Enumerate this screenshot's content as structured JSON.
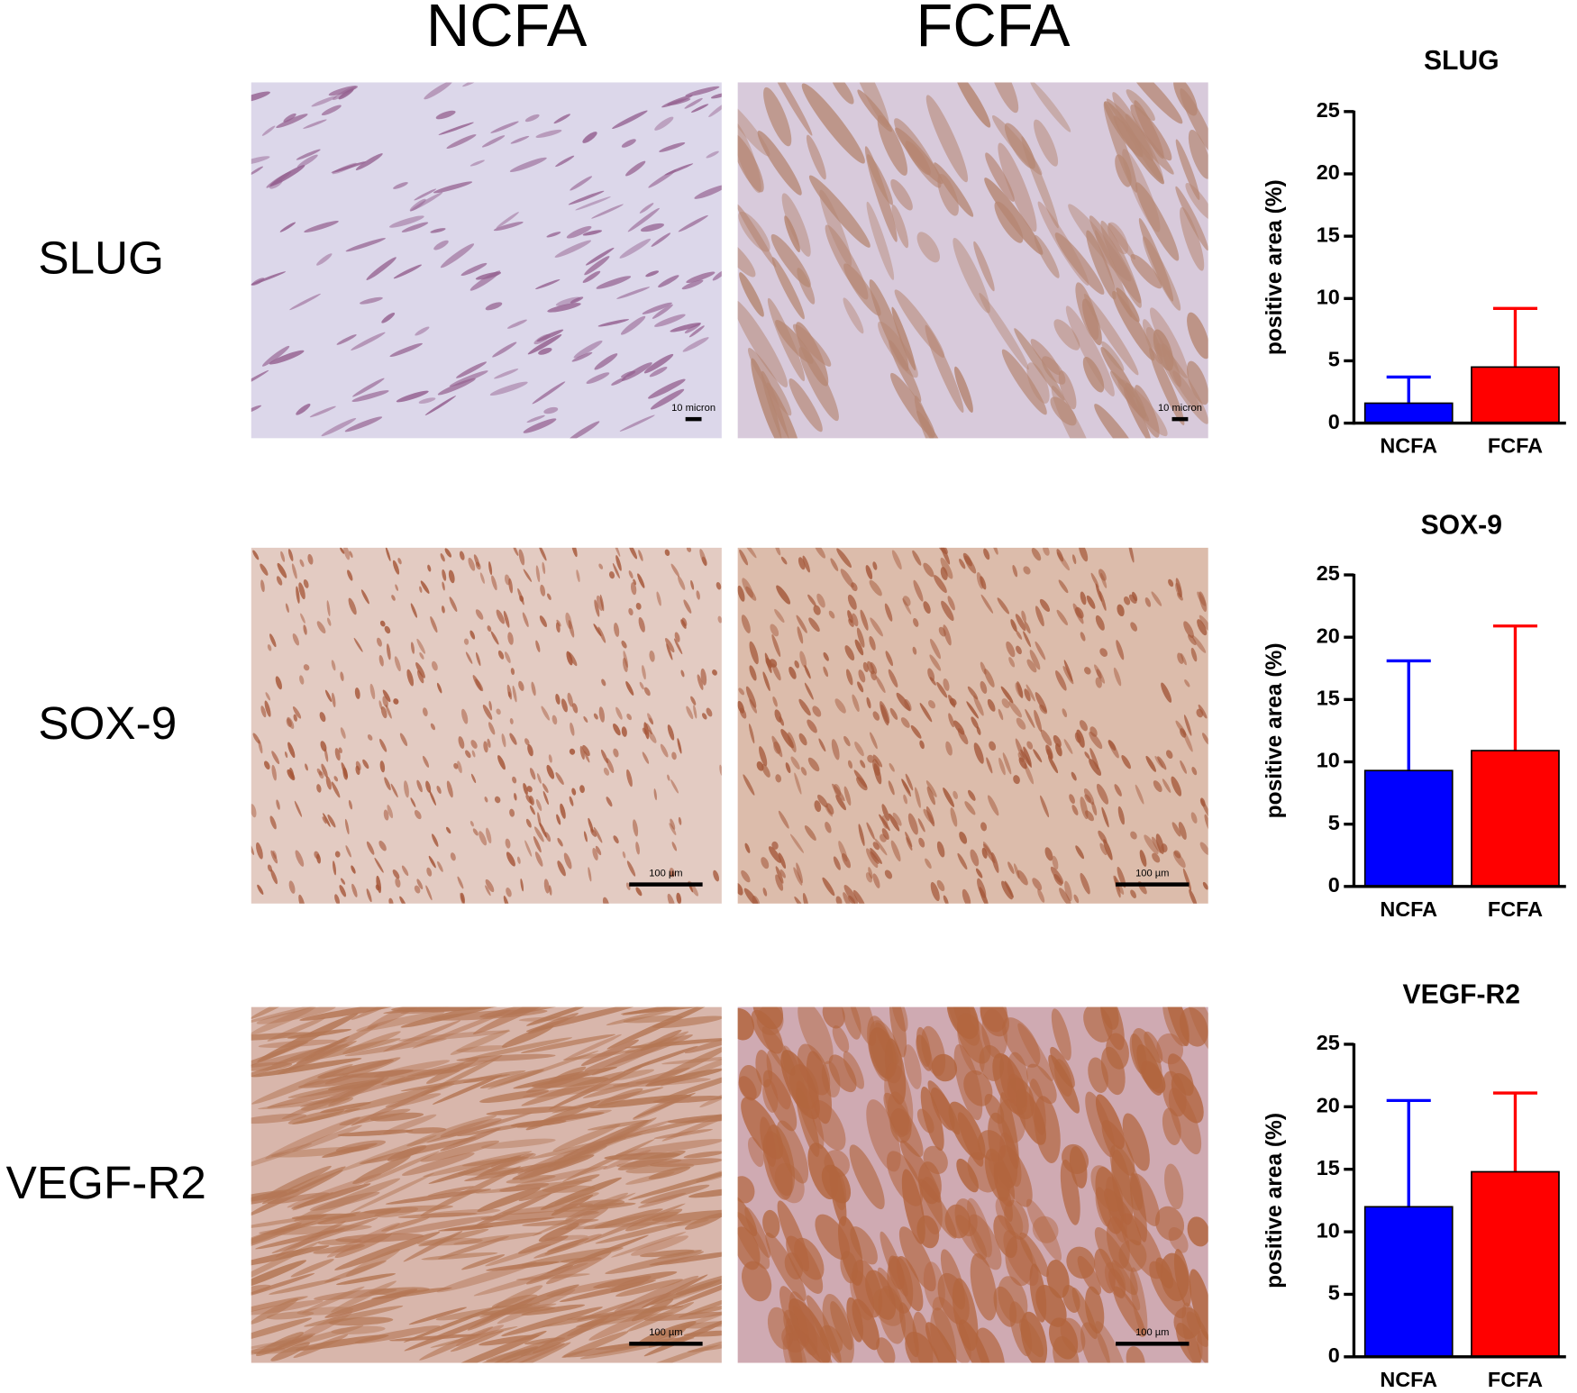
{
  "panels": {
    "columns": [
      "NCFA",
      "FCFA"
    ],
    "rows": [
      "SLUG",
      "SOX-9",
      "VEGF-R2"
    ],
    "scale_labels": [
      [
        "10 micron",
        "10 micron"
      ],
      [
        "100 µm",
        "100 µm"
      ],
      [
        "100 µm",
        "100 µm"
      ]
    ]
  },
  "chart_data": [
    {
      "type": "bar",
      "title": "SLUG",
      "ylabel": "positive area (%)",
      "categories": [
        "NCFA",
        "FCFA"
      ],
      "values": [
        1.6,
        4.5
      ],
      "errors": [
        2.1,
        4.7
      ],
      "colors": [
        "#0000ff",
        "#ff0000"
      ],
      "ylim": [
        0,
        25
      ],
      "yticks": [
        0,
        5,
        10,
        15,
        20,
        25
      ]
    },
    {
      "type": "bar",
      "title": "SOX-9",
      "ylabel": "positive area (%)",
      "categories": [
        "NCFA",
        "FCFA"
      ],
      "values": [
        9.3,
        10.9
      ],
      "errors": [
        8.8,
        10.0
      ],
      "colors": [
        "#0000ff",
        "#ff0000"
      ],
      "ylim": [
        0,
        25
      ],
      "yticks": [
        0,
        5,
        10,
        15,
        20,
        25
      ]
    },
    {
      "type": "bar",
      "title": "VEGF-R2",
      "ylabel": "positive area (%)",
      "categories": [
        "NCFA",
        "FCFA"
      ],
      "values": [
        12.0,
        14.8
      ],
      "errors": [
        8.5,
        6.3
      ],
      "colors": [
        "#0000ff",
        "#ff0000"
      ],
      "ylim": [
        0,
        25
      ],
      "yticks": [
        0,
        5,
        10,
        15,
        20,
        25
      ]
    }
  ]
}
